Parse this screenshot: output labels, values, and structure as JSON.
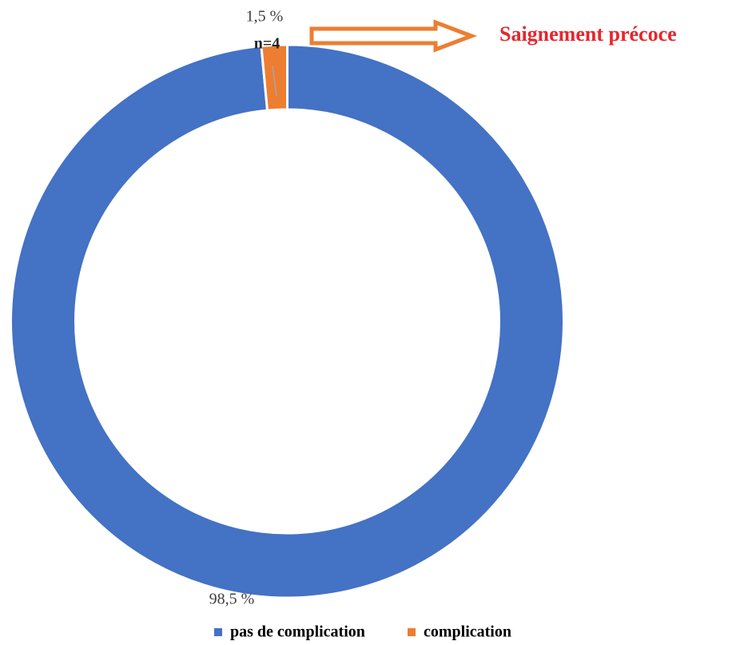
{
  "chart_data": {
    "type": "donut",
    "categories": [
      "pas de complication",
      "complication"
    ],
    "values": [
      98.5,
      1.5
    ],
    "value_labels": [
      "98,5 %",
      "1,5 %"
    ],
    "colors": [
      "#4472c4",
      "#ed7d31"
    ],
    "annotations": [
      "n=4",
      "Saignement précoce"
    ],
    "legend": "bottom"
  }
}
